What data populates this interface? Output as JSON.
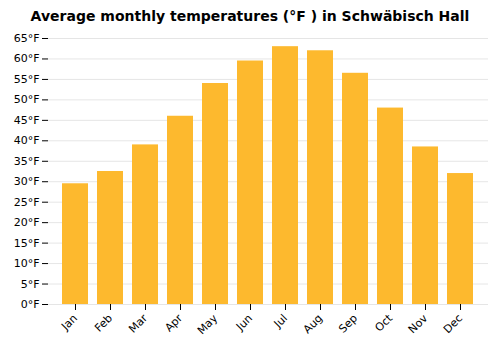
{
  "chart_data": {
    "type": "bar",
    "title": "Average monthly temperatures (°F ) in Schwäbisch Hall",
    "categories": [
      "Jan",
      "Feb",
      "Mar",
      "Apr",
      "May",
      "Jun",
      "Jul",
      "Aug",
      "Sep",
      "Oct",
      "Nov",
      "Dec"
    ],
    "values": [
      29.5,
      32.5,
      39.0,
      46.0,
      54.0,
      59.5,
      63.0,
      62.0,
      56.5,
      48.0,
      38.5,
      32.0
    ],
    "color": "#FDB92E",
    "ylim": [
      0,
      65
    ],
    "yticks": [
      {
        "value": 0,
        "label": "0°F"
      },
      {
        "value": 5,
        "label": "5°F"
      },
      {
        "value": 10,
        "label": "10°F"
      },
      {
        "value": 15,
        "label": "15°F"
      },
      {
        "value": 20,
        "label": "20°F"
      },
      {
        "value": 25,
        "label": "25°F"
      },
      {
        "value": 30,
        "label": "30°F"
      },
      {
        "value": 35,
        "label": "35°F"
      },
      {
        "value": 40,
        "label": "40°F"
      },
      {
        "value": 45,
        "label": "45°F"
      },
      {
        "value": 50,
        "label": "50°F"
      },
      {
        "value": 55,
        "label": "55°F"
      },
      {
        "value": 60,
        "label": "60°F"
      },
      {
        "value": 65,
        "label": "65°F"
      }
    ],
    "grid": true
  }
}
